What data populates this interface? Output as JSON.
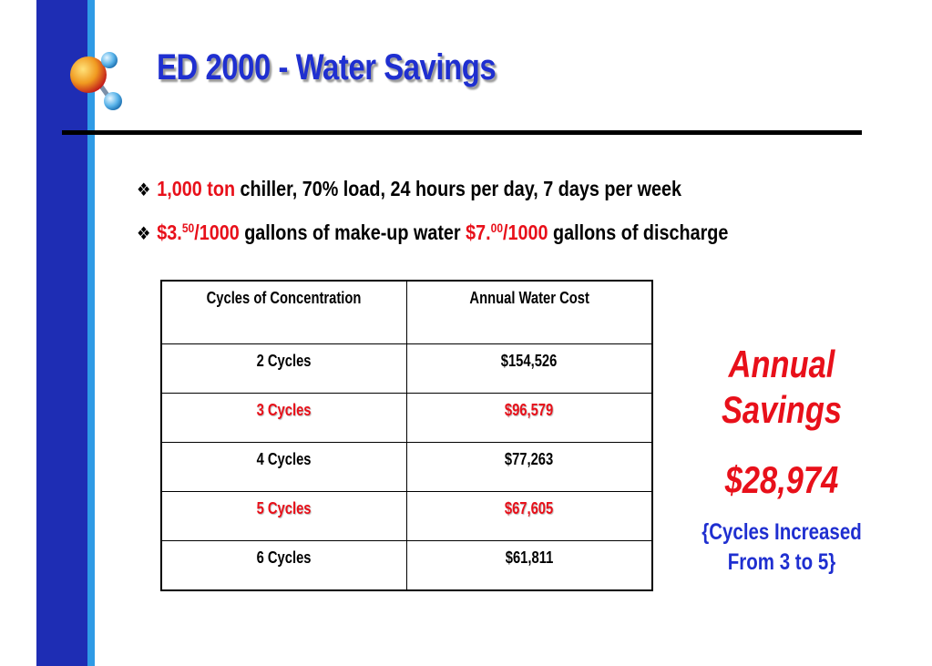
{
  "slide": {
    "title": "ED 2000 - Water Savings",
    "bullet_glyph": "❖",
    "bullet1": {
      "highlight": "1,000 ton",
      "rest": " chiller, 70% load, 24 hours per day, 7 days per week"
    },
    "bullet2": {
      "price1_main": "$3.",
      "price1_sup": "50",
      "price1_tail": "/1000",
      "text1": " gallons of make-up water ",
      "price2_main": "$7.",
      "price2_sup": "00",
      "price2_tail": "/1000",
      "text2": " gallons of discharge"
    }
  },
  "table": {
    "headers": [
      "Cycles of Concentration",
      "Annual Water Cost"
    ],
    "rows": [
      {
        "cycles": "2  Cycles",
        "cost": "$154,526",
        "highlighted": false
      },
      {
        "cycles": "3 Cycles",
        "cost": "$96,579",
        "highlighted": true
      },
      {
        "cycles": "4 Cycles",
        "cost": "$77,263",
        "highlighted": false
      },
      {
        "cycles": "5 Cycles",
        "cost": "$67,605",
        "highlighted": true
      },
      {
        "cycles": "6 Cycles",
        "cost": "$61,811",
        "highlighted": false
      }
    ]
  },
  "savings": {
    "line1": "Annual",
    "line2": "Savings",
    "amount": "$28,974",
    "note_line1": "{Cycles Increased",
    "note_line2": "From 3 to 5}"
  },
  "colors": {
    "accent_red": "#e8101a",
    "title_blue": "#1f2fd0",
    "bar_dark_blue": "#1e2db4",
    "bar_light_blue": "#2f9be6"
  },
  "icons": {
    "logo": "molecule-icon",
    "bullet": "diamond-bullet-icon"
  }
}
